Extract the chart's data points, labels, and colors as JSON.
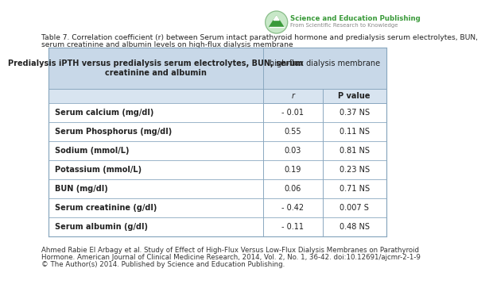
{
  "title_line1": "Table 7. Correlation coefficient (r) between Serum intact parathyroid hormone and predialysis serum electrolytes, BUN,",
  "title_line2": "serum creatinine and albumin levels on high-flux dialysis membrane",
  "header_col1": "Predialysis iPTH versus predialysis serum electrolytes, BUN, serum\ncreatinine and albumin",
  "header_main": "high-flux dialysis membrane",
  "subheader_r": "r",
  "subheader_p": "P value",
  "rows": [
    {
      "label": "Serum calcium (mg/dl)",
      "r": "- 0.01",
      "p": "0.37 NS"
    },
    {
      "label": "Serum Phosphorus (mg/dl)",
      "r": "0.55",
      "p": "0.11 NS"
    },
    {
      "label": "Sodium (mmol/L)",
      "r": "0.03",
      "p": "0.81 NS"
    },
    {
      "label": "Potassium (mmol/L)",
      "r": "0.19",
      "p": "0.23 NS"
    },
    {
      "label": "BUN (mg/dl)",
      "r": "0.06",
      "p": "0.71 NS"
    },
    {
      "label": "Serum creatinine (g/dl)",
      "r": "- 0.42",
      "p": "0.007 S"
    },
    {
      "label": "Serum albumin (g/dl)",
      "r": "- 0.11",
      "p": "0.48 NS"
    }
  ],
  "footer1": "Ahmed Rabie El Arbagy et al. Study of Effect of High-Flux Versus Low-Flux Dialysis Membranes on Parathyroid",
  "footer2": "Hormone. American Journal of Clinical Medicine Research, 2014, Vol. 2, No. 1, 36-42. doi:10.12691/ajcmr-2-1-9",
  "footer3": "© The Author(s) 2014. Published by Science and Education Publishing.",
  "header_bg": "#c8d8e8",
  "subheader_bg": "#d8e4f0",
  "border_color": "#8aa8c0",
  "logo_text1": "Science and Education Publishing",
  "logo_text2": "From Scientific Research to Knowledge",
  "logo_green": "#3a9a3a",
  "logo_light_green": "#c8e8c8"
}
